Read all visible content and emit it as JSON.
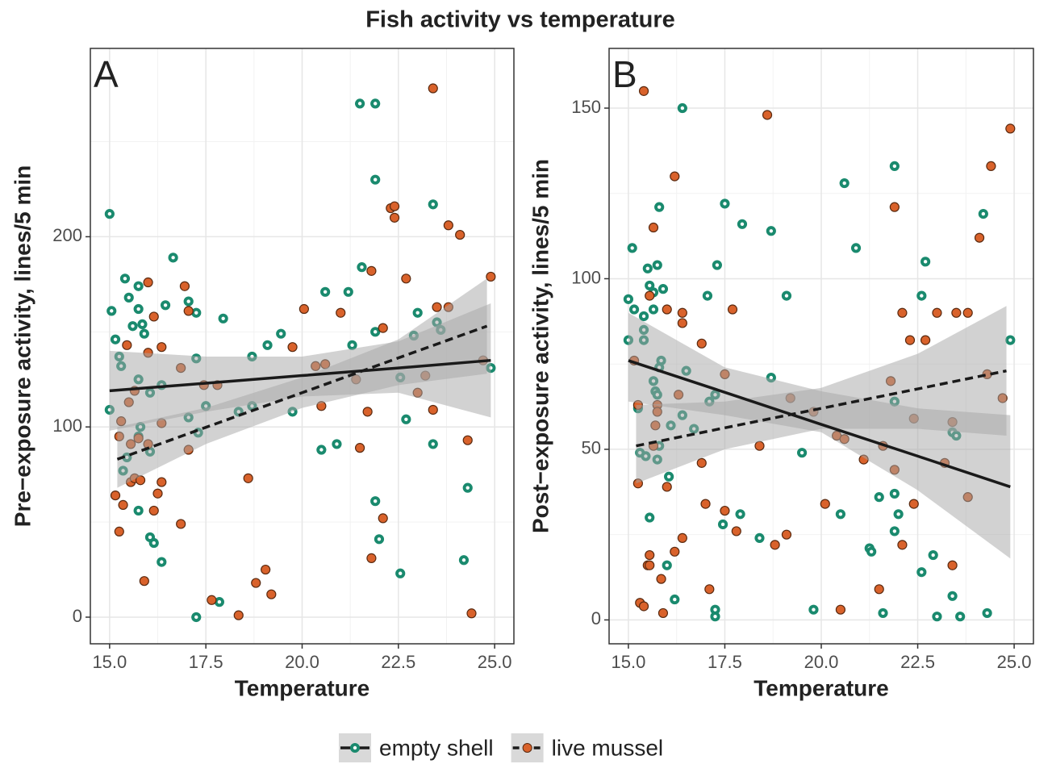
{
  "title": "Fish activity vs temperature",
  "chart_data": [
    {
      "type": "scatter",
      "panel_label": "A",
      "x_label": "Temperature",
      "y_label": "Pre−exposure activity, lines/5 min",
      "xlim": [
        14.5,
        25.5
      ],
      "ylim": [
        -14,
        299
      ],
      "xticks": [
        {
          "value": 15,
          "label": "15.0"
        },
        17.5,
        {
          "value": 20,
          "label": "20.0"
        },
        22.5,
        {
          "value": 25,
          "label": "25.0"
        }
      ],
      "yticks": [
        0,
        100,
        200
      ],
      "xminor": [
        16.25,
        18.75,
        21.25,
        23.75
      ],
      "yminor": [
        50,
        150,
        250
      ],
      "grid": true,
      "series": [
        {
          "name": "empty shell",
          "color": "#1a8a6e",
          "line": "solid",
          "x": [
            15.0,
            15.05,
            15.15,
            15.25,
            15.3,
            15.4,
            15.5,
            15.6,
            15.75,
            15.75,
            15.85,
            15.9,
            15.75,
            15.8,
            15.75,
            15.45,
            15.35,
            15.75,
            16.05,
            16.05,
            16.05,
            16.15,
            16.35,
            16.35,
            16.45,
            16.65,
            17.05,
            17.25,
            17.25,
            17.05,
            17.3,
            17.25,
            17.5,
            17.85,
            17.95,
            18.35,
            18.7,
            18.7,
            19.1,
            19.45,
            19.75,
            20.5,
            20.6,
            20.9,
            21.2,
            21.3,
            21.5,
            21.9,
            21.55,
            21.9,
            21.9,
            21.9,
            22.0,
            22.55,
            22.55,
            22.7,
            22.9,
            23.0,
            23.4,
            23.4,
            23.5,
            23.6,
            24.2,
            24.3,
            24.9,
            15.0
          ],
          "y": [
            212,
            161,
            146,
            137,
            132,
            178,
            168,
            153,
            174,
            162,
            154,
            149,
            125,
            100,
            95,
            84,
            77,
            56,
            118,
            87,
            42,
            39,
            29,
            122,
            164,
            189,
            166,
            160,
            136,
            105,
            97,
            0,
            111,
            8,
            157,
            108,
            137,
            111,
            143,
            149,
            108,
            88,
            171,
            91,
            171,
            143,
            270,
            270,
            184,
            230,
            150,
            61,
            41,
            126,
            23,
            104,
            148,
            160,
            217,
            91,
            155,
            151,
            30,
            68,
            131,
            109
          ],
          "fit": {
            "x": [
              15,
              17.5,
              20,
              22.5,
              24.9
            ],
            "y": [
              119,
              123,
              127,
              131,
              135
            ],
            "lower": [
              98,
              108,
              116,
              118,
              105
            ],
            "upper": [
              140,
              137,
              137,
              145,
              165
            ]
          }
        },
        {
          "name": "live mussel",
          "color": "#d9622b",
          "line": "dashed",
          "x": [
            15.15,
            15.25,
            15.25,
            15.3,
            15.35,
            15.45,
            15.55,
            15.55,
            15.5,
            15.65,
            15.65,
            15.75,
            15.8,
            15.9,
            16.0,
            16.0,
            16.0,
            16.15,
            16.15,
            16.25,
            16.35,
            16.35,
            16.35,
            16.85,
            16.95,
            16.85,
            17.05,
            17.05,
            17.45,
            17.65,
            17.8,
            18.35,
            18.6,
            18.8,
            19.05,
            19.2,
            19.75,
            20.05,
            20.35,
            20.6,
            20.5,
            21.0,
            21.4,
            21.5,
            21.7,
            21.8,
            21.8,
            22.1,
            22.1,
            22.3,
            22.4,
            22.4,
            22.7,
            23.0,
            23.2,
            23.4,
            23.4,
            23.5,
            23.8,
            23.8,
            24.1,
            24.3,
            24.4,
            24.7,
            24.9
          ],
          "y": [
            64,
            45,
            95,
            103,
            59,
            143,
            91,
            71,
            113,
            119,
            73,
            94,
            72,
            19,
            139,
            176,
            91,
            158,
            56,
            65,
            142,
            102,
            71,
            49,
            174,
            131,
            161,
            88,
            122,
            9,
            122,
            1,
            73,
            18,
            25,
            12,
            142,
            162,
            132,
            133,
            111,
            160,
            125,
            89,
            108,
            182,
            31,
            52,
            152,
            215,
            216,
            210,
            178,
            118,
            127,
            278,
            109,
            163,
            163,
            206,
            201,
            93,
            2,
            135,
            179
          ],
          "fit": {
            "x": [
              15.2,
              17.5,
              20,
              22.5,
              24.8
            ],
            "y": [
              83,
              99.8,
              118,
              136.3,
              153
            ],
            "lower": [
              68,
              91,
              110,
              122,
              128
            ],
            "upper": [
              100,
              110,
              126,
              146,
              178
            ]
          }
        }
      ]
    },
    {
      "type": "scatter",
      "panel_label": "B",
      "x_label": "Temperature",
      "y_label": "Post−exposure activity, lines/5 min",
      "xlim": [
        14.5,
        25.5
      ],
      "ylim": [
        -7,
        167.5
      ],
      "xticks": [
        {
          "value": 15,
          "label": "15.0"
        },
        17.5,
        {
          "value": 20,
          "label": "20.0"
        },
        22.5,
        {
          "value": 25,
          "label": "25.0"
        }
      ],
      "yticks": [
        0,
        50,
        100,
        150
      ],
      "xminor": [
        16.25,
        18.75,
        21.25,
        23.75
      ],
      "yminor": [
        25,
        75,
        125
      ],
      "grid": true,
      "series": [
        {
          "name": "empty shell",
          "color": "#1a8a6e",
          "line": "solid",
          "x": [
            15.0,
            15.0,
            15.1,
            15.15,
            15.25,
            15.3,
            15.4,
            15.4,
            15.4,
            15.5,
            15.45,
            15.55,
            15.55,
            15.65,
            15.65,
            15.65,
            15.7,
            15.75,
            15.8,
            15.8,
            15.75,
            15.8,
            15.75,
            15.9,
            15.85,
            16.0,
            16.05,
            16.1,
            16.2,
            16.4,
            16.4,
            16.5,
            16.7,
            17.05,
            17.1,
            17.3,
            17.25,
            17.25,
            17.25,
            17.5,
            17.45,
            17.9,
            17.95,
            18.4,
            18.7,
            18.7,
            19.1,
            19.5,
            19.8,
            20.5,
            20.6,
            20.9,
            21.25,
            21.3,
            21.5,
            21.6,
            21.9,
            21.9,
            21.9,
            21.9,
            22.0,
            22.6,
            22.7,
            22.6,
            22.9,
            23.0,
            23.4,
            23.4,
            23.5,
            23.6,
            24.2,
            24.3,
            24.9
          ],
          "y": [
            94,
            82,
            109,
            91,
            62,
            49,
            89,
            85,
            82,
            103,
            48,
            30,
            98,
            96,
            91,
            70,
            67,
            104,
            121,
            74,
            47,
            51,
            66,
            97,
            76,
            16,
            42,
            57,
            6,
            150,
            60,
            73,
            56,
            95,
            64,
            104,
            66,
            3,
            1,
            122,
            28,
            31,
            116,
            24,
            114,
            71,
            95,
            49,
            3,
            31,
            128,
            109,
            21,
            20,
            36,
            2,
            133,
            64,
            37,
            26,
            31,
            95,
            105,
            14,
            19,
            1,
            7,
            55,
            54,
            1,
            119,
            2,
            82
          ],
          "fit": {
            "x": [
              15,
              17.5,
              20,
              22.5,
              24.9
            ],
            "y": [
              76,
              66.7,
              57.3,
              48,
              39
            ],
            "lower": [
              64,
              60,
              55,
              38,
              18
            ],
            "upper": [
              90,
              74,
              67,
              62,
              60
            ]
          }
        },
        {
          "name": "live mussel",
          "color": "#d9622b",
          "line": "dashed",
          "x": [
            15.15,
            15.25,
            15.25,
            15.3,
            15.4,
            15.4,
            15.5,
            15.55,
            15.55,
            15.55,
            15.65,
            15.65,
            15.7,
            15.75,
            15.75,
            15.85,
            15.9,
            16.0,
            16.0,
            16.2,
            16.2,
            16.3,
            16.4,
            16.4,
            16.4,
            16.9,
            16.9,
            17.0,
            17.1,
            17.5,
            17.5,
            17.7,
            17.8,
            18.6,
            18.4,
            18.8,
            19.1,
            19.2,
            19.8,
            20.1,
            20.4,
            20.6,
            20.5,
            21.1,
            21.5,
            21.6,
            21.8,
            21.9,
            21.9,
            22.1,
            22.1,
            22.3,
            22.4,
            22.4,
            22.7,
            23.0,
            23.2,
            23.4,
            23.4,
            23.5,
            23.8,
            23.8,
            24.1,
            24.4,
            24.3,
            24.7,
            24.9
          ],
          "y": [
            76,
            63,
            40,
            5,
            4,
            155,
            16,
            16,
            19,
            95,
            115,
            51,
            57,
            63,
            61,
            12,
            2,
            39,
            91,
            130,
            20,
            66,
            90,
            87,
            24,
            81,
            46,
            34,
            9,
            32,
            72,
            91,
            26,
            148,
            51,
            22,
            25,
            65,
            61,
            34,
            54,
            53,
            3,
            47,
            9,
            51,
            70,
            121,
            44,
            90,
            22,
            82,
            59,
            34,
            82,
            90,
            46,
            58,
            16,
            90,
            90,
            36,
            112,
            133,
            72,
            65,
            144
          ],
          "fit": {
            "x": [
              15.2,
              17.5,
              20,
              22.5,
              24.8
            ],
            "y": [
              51,
              56.3,
              62,
              67.7,
              73
            ],
            "lower": [
              40,
              50,
              56,
              56,
              54
            ],
            "upper": [
              63,
              64,
              68,
              78,
              92
            ]
          }
        }
      ]
    }
  ],
  "legend_position": "bottom"
}
